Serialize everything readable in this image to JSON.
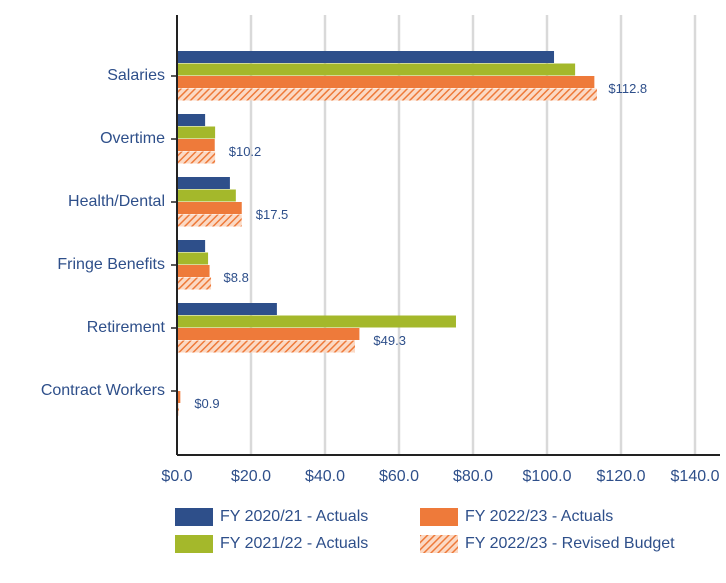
{
  "chart_data": {
    "type": "hbar",
    "categories": [
      "Salaries",
      "Overtime",
      "Health/Dental",
      "Fringe Benefits",
      "Retirement",
      "Contract Workers"
    ],
    "series": [
      {
        "name": "FY 2020/21 - Actuals",
        "color": "#2e4f8a",
        "values": [
          101.9,
          7.6,
          14.3,
          7.6,
          27.0,
          0
        ]
      },
      {
        "name": "FY 2021/22 - Actuals",
        "color": "#a4b82b",
        "values": [
          107.6,
          10.3,
          15.9,
          8.4,
          75.4,
          0
        ]
      },
      {
        "name": "FY 2022/23 - Actuals",
        "color": "#ee7a3a",
        "values": [
          112.8,
          10.2,
          17.5,
          8.8,
          49.3,
          0.9
        ],
        "value_labels": [
          "$112.8",
          "$10.2",
          "$17.5",
          "$8.8",
          "$49.3",
          "$0.9"
        ]
      },
      {
        "name": "FY 2022/23 - Revised Budget",
        "color": "#ee7a3a",
        "hatch": true,
        "values": [
          113.5,
          10.3,
          17.5,
          9.2,
          48.1,
          0.5
        ]
      }
    ],
    "xlim": [
      0,
      140
    ],
    "xticks": [
      {
        "value": 0,
        "label": "$0.0"
      },
      {
        "value": 20,
        "label": "$20.0"
      },
      {
        "value": 40,
        "label": "$40.0"
      },
      {
        "value": 60,
        "label": "$60.0"
      },
      {
        "value": 80,
        "label": "$80.0"
      },
      {
        "value": 100,
        "label": "$100.0"
      },
      {
        "value": 120,
        "label": "$120.0"
      },
      {
        "value": 140,
        "label": "$140.0"
      }
    ],
    "grid": true,
    "legend": "bottom"
  }
}
